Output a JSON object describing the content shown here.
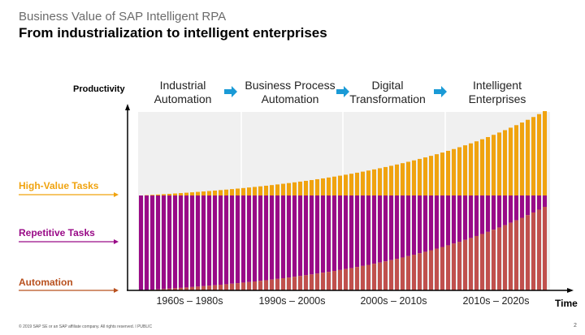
{
  "header": {
    "title": "Business Value of SAP Intelligent RPA",
    "subtitle": "From industrialization to intelligent enterprises"
  },
  "axes": {
    "y_label": "Productivity",
    "x_label": "Time"
  },
  "phases": [
    {
      "line1": "Industrial",
      "line2": "Automation"
    },
    {
      "line1": "Business Process",
      "line2": "Automation"
    },
    {
      "line1": "Digital",
      "line2": "Transformation"
    },
    {
      "line1": "Intelligent",
      "line2": "Enterprises"
    }
  ],
  "eras": [
    "1960s – 1980s",
    "1990s – 2000s",
    "2000s – 2010s",
    "2010s – 2020s"
  ],
  "layers": [
    {
      "label": "High-Value Tasks",
      "color": "#f0a30f"
    },
    {
      "label": "Repetitive Tasks",
      "color": "#990a87"
    },
    {
      "label": "Automation",
      "color": "#b8501e",
      "bar_color": "#c0504d"
    }
  ],
  "colors": {
    "phase_arrow": "#1a9ad6",
    "background": "#f0f0f0"
  },
  "footer": {
    "copyright": "© 2019 SAP SE or an SAP affiliate company. All rights reserved.  ǀ  PUBLIC",
    "page": "2"
  }
}
